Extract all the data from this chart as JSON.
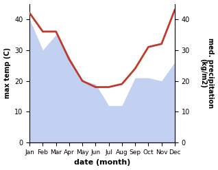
{
  "months": [
    "Jan",
    "Feb",
    "Mar",
    "Apr",
    "May",
    "Jun",
    "Jul",
    "Aug",
    "Sep",
    "Oct",
    "Nov",
    "Dec"
  ],
  "max_temp": [
    40,
    30,
    35,
    28,
    20,
    19,
    12,
    12,
    21,
    21,
    20,
    26
  ],
  "precipitation": [
    42,
    36,
    36,
    27,
    20,
    18,
    18,
    19,
    24,
    31,
    32,
    43
  ],
  "temp_fill_color": "#b8c8f0",
  "precip_color": "#c0392b",
  "ylabel_left": "max temp (C)",
  "ylabel_right": "med. precipitation\n(kg/m2)",
  "xlabel": "date (month)",
  "ylim_left": [
    0,
    45
  ],
  "ylim_right": [
    0,
    45
  ],
  "yticks_left": [
    0,
    10,
    20,
    30,
    40
  ],
  "yticks_right": [
    0,
    10,
    20,
    30,
    40
  ],
  "background_color": "#ffffff"
}
